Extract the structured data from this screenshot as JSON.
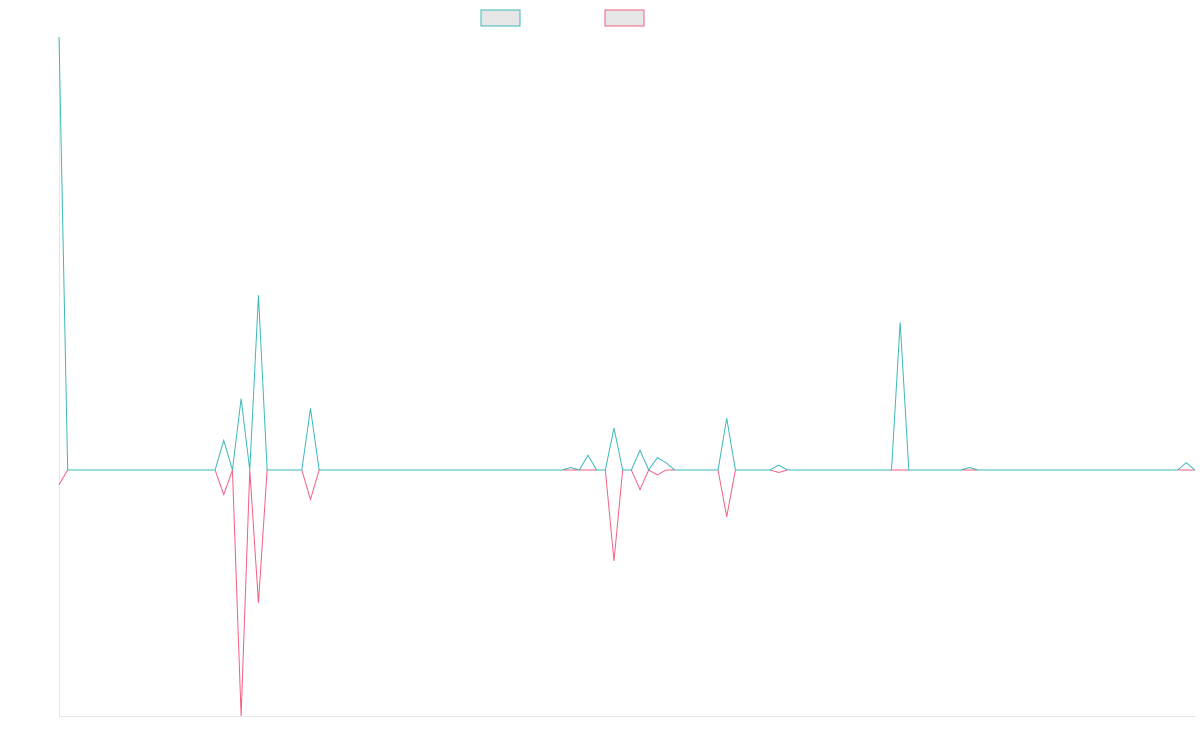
{
  "chart_data": {
    "type": "line",
    "title": "",
    "xlabel": "",
    "ylabel": "",
    "grid": false,
    "legend_position": "top-center",
    "xlim": [
      0,
      131
    ],
    "ylim": [
      -100,
      176
    ],
    "x": [
      0,
      1,
      2,
      3,
      4,
      5,
      6,
      7,
      8,
      9,
      10,
      11,
      12,
      13,
      14,
      15,
      16,
      17,
      18,
      19,
      20,
      21,
      22,
      23,
      24,
      25,
      26,
      27,
      28,
      29,
      30,
      31,
      32,
      33,
      34,
      35,
      36,
      37,
      38,
      39,
      40,
      41,
      42,
      43,
      44,
      45,
      46,
      47,
      48,
      49,
      50,
      51,
      52,
      53,
      54,
      55,
      56,
      57,
      58,
      59,
      60,
      61,
      62,
      63,
      64,
      65,
      66,
      67,
      68,
      69,
      70,
      71,
      72,
      73,
      74,
      75,
      76,
      77,
      78,
      79,
      80,
      81,
      82,
      83,
      84,
      85,
      86,
      87,
      88,
      89,
      90,
      91,
      92,
      93,
      94,
      95,
      96,
      97,
      98,
      99,
      100,
      101,
      102,
      103,
      104,
      105,
      106,
      107,
      108,
      109,
      110,
      111,
      112,
      113,
      114,
      115,
      116,
      117,
      118,
      119,
      120,
      121,
      122,
      123,
      124,
      125,
      126,
      127,
      128,
      129,
      130,
      131
    ],
    "series": [
      {
        "color": "#3cb8b8",
        "values": [
          176,
          0,
          0,
          0,
          0,
          0,
          0,
          0,
          0,
          0,
          0,
          0,
          0,
          0,
          0,
          0,
          0,
          0,
          0,
          12,
          0,
          29,
          0,
          71,
          0,
          0,
          0,
          0,
          0,
          25,
          0,
          0,
          0,
          0,
          0,
          0,
          0,
          0,
          0,
          0,
          0,
          0,
          0,
          0,
          0,
          0,
          0,
          0,
          0,
          0,
          0,
          0,
          0,
          0,
          0,
          0,
          0,
          0,
          0,
          1,
          0,
          6,
          0,
          0,
          17,
          0,
          0,
          8,
          0,
          5,
          3,
          0,
          0,
          0,
          0,
          0,
          0,
          21,
          0,
          0,
          0,
          0,
          0,
          2,
          0,
          0,
          0,
          0,
          0,
          0,
          0,
          0,
          0,
          0,
          0,
          0,
          0,
          60,
          0,
          0,
          0,
          0,
          0,
          0,
          0,
          1,
          0,
          0,
          0,
          0,
          0,
          0,
          0,
          0,
          0,
          0,
          0,
          0,
          0,
          0,
          0,
          0,
          0,
          0,
          0,
          0,
          0,
          0,
          0,
          0,
          3,
          0
        ]
      },
      {
        "color": "#f25f82",
        "values": [
          -6,
          0,
          0,
          0,
          0,
          0,
          0,
          0,
          0,
          0,
          0,
          0,
          0,
          0,
          0,
          0,
          0,
          0,
          0,
          -10,
          0,
          -100,
          0,
          -54,
          0,
          0,
          0,
          0,
          0,
          -12,
          0,
          0,
          0,
          0,
          0,
          0,
          0,
          0,
          0,
          0,
          0,
          0,
          0,
          0,
          0,
          0,
          0,
          0,
          0,
          0,
          0,
          0,
          0,
          0,
          0,
          0,
          0,
          0,
          0,
          0,
          0,
          0,
          0,
          0,
          -37,
          0,
          0,
          -8,
          0,
          -2,
          0,
          0,
          0,
          0,
          0,
          0,
          0,
          -19,
          0,
          0,
          0,
          0,
          0,
          -1,
          0,
          0,
          0,
          0,
          0,
          0,
          0,
          0,
          0,
          0,
          0,
          0,
          0,
          0,
          0,
          0,
          0,
          0,
          0,
          0,
          0,
          0,
          0,
          0,
          0,
          0,
          0,
          0,
          0,
          0,
          0,
          0,
          0,
          0,
          0,
          0,
          0,
          0,
          0,
          0,
          0,
          0,
          0,
          0,
          0,
          0,
          0,
          0
        ]
      }
    ]
  }
}
